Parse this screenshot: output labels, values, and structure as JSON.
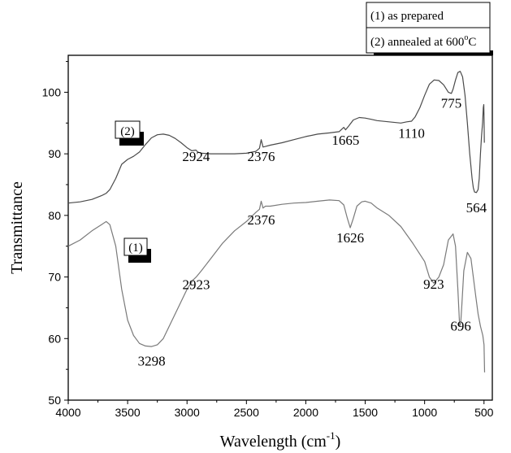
{
  "chart_data": {
    "type": "line",
    "title": "",
    "xlabel": "Wavelength (cm",
    "xlabel_sup": "-1",
    "xlabel_tail": ")",
    "ylabel": "Transmittance",
    "xlim": [
      4000,
      430
    ],
    "ylim": [
      50,
      106
    ],
    "x_ticks": [
      4000,
      3500,
      3000,
      2500,
      2000,
      1500,
      1000,
      500
    ],
    "x_tick_labels": [
      "4000",
      "3500",
      "3000",
      "2500",
      "2000",
      "1500",
      "1000",
      "500"
    ],
    "y_ticks": [
      50,
      60,
      70,
      80,
      90,
      100
    ],
    "y_tick_labels": [
      "50",
      "60",
      "70",
      "80",
      "90",
      "100"
    ],
    "grid": false,
    "legend": {
      "position": "top-right",
      "line1": "(1) as prepared",
      "line2_prefix": "(2) annealed at 600",
      "line2_sup": "o",
      "line2_suffix": "C"
    },
    "series": [
      {
        "id": "1",
        "label": "(1)",
        "color": "#7a7a7a",
        "x": [
          4000,
          3900,
          3800,
          3720,
          3680,
          3650,
          3600,
          3550,
          3500,
          3450,
          3400,
          3350,
          3298,
          3250,
          3200,
          3150,
          3100,
          3050,
          3000,
          2950,
          2923,
          2880,
          2800,
          2700,
          2600,
          2500,
          2420,
          2390,
          2376,
          2360,
          2340,
          2300,
          2200,
          2100,
          2000,
          1900,
          1800,
          1720,
          1680,
          1650,
          1626,
          1600,
          1570,
          1530,
          1500,
          1450,
          1400,
          1300,
          1200,
          1100,
          1000,
          960,
          923,
          880,
          840,
          800,
          760,
          740,
          720,
          705,
          696,
          688,
          670,
          640,
          610,
          590,
          570,
          550,
          530,
          510,
          500,
          495
        ],
        "y": [
          75,
          76,
          77.5,
          78.5,
          79,
          78.5,
          75,
          68,
          63,
          60.5,
          59.2,
          58.8,
          58.7,
          59,
          60,
          62,
          64,
          66,
          68,
          69.5,
          70,
          71,
          73,
          75.5,
          77.5,
          79,
          80.5,
          81,
          82.3,
          81.2,
          81.5,
          81.5,
          81.8,
          82,
          82.1,
          82.3,
          82.5,
          82.4,
          81.7,
          79.5,
          78,
          79.5,
          81.5,
          82.2,
          82.3,
          82,
          81.2,
          80,
          78.2,
          75.5,
          72.5,
          70,
          69,
          70,
          72,
          76,
          77,
          75,
          68,
          62,
          62.5,
          65,
          71,
          74,
          73,
          70,
          67,
          64,
          62,
          60.5,
          59,
          54.5
        ]
      },
      {
        "id": "2",
        "label": "(2)",
        "color": "#4a4a4a",
        "x": [
          4000,
          3900,
          3800,
          3720,
          3680,
          3650,
          3600,
          3550,
          3500,
          3450,
          3400,
          3350,
          3300,
          3250,
          3200,
          3150,
          3100,
          3050,
          3000,
          2960,
          2930,
          2924,
          2910,
          2880,
          2800,
          2700,
          2600,
          2500,
          2420,
          2390,
          2376,
          2360,
          2340,
          2300,
          2200,
          2100,
          2000,
          1900,
          1800,
          1720,
          1680,
          1665,
          1640,
          1600,
          1550,
          1500,
          1450,
          1400,
          1300,
          1200,
          1150,
          1110,
          1080,
          1040,
          1000,
          960,
          920,
          880,
          840,
          800,
          775,
          760,
          740,
          720,
          700,
          680,
          660,
          640,
          620,
          600,
          590,
          580,
          564,
          550,
          540,
          530,
          520,
          512,
          506,
          502,
          500,
          497
        ],
        "y": [
          82,
          82.2,
          82.6,
          83.2,
          83.6,
          84.2,
          86,
          88.3,
          89.1,
          89.6,
          90.3,
          91.5,
          92.6,
          93.1,
          93.2,
          93,
          92.5,
          91.8,
          91,
          90.5,
          90.6,
          90.6,
          90.3,
          90.1,
          90,
          90,
          90,
          90.1,
          90.4,
          90.9,
          92.3,
          91.1,
          91.2,
          91.4,
          91.8,
          92.3,
          92.8,
          93.2,
          93.4,
          93.6,
          94.3,
          93.9,
          94.5,
          95.5,
          95.9,
          95.8,
          95.6,
          95.4,
          95.2,
          95,
          95.2,
          95.3,
          96,
          97.5,
          99.5,
          101.3,
          102,
          101.9,
          101.2,
          100,
          99.8,
          100.5,
          102,
          103.2,
          103.4,
          102.5,
          99.5,
          95,
          90,
          86,
          84.5,
          83.8,
          83.7,
          84.2,
          86,
          90,
          93,
          95,
          97.5,
          98,
          96,
          91.8
        ]
      }
    ],
    "annotations": [
      {
        "text": "2924",
        "x": 2924,
        "y": 88.8,
        "series": "2"
      },
      {
        "text": "2376",
        "x": 2376,
        "y": 88.8,
        "series": "2"
      },
      {
        "text": "1665",
        "x": 1665,
        "y": 91.5,
        "series": "2"
      },
      {
        "text": "1110",
        "x": 1110,
        "y": 92.6,
        "series": "2"
      },
      {
        "text": "775",
        "x": 775,
        "y": 97.5,
        "series": "2"
      },
      {
        "text": "564",
        "x": 564,
        "y": 80.5,
        "series": "2"
      },
      {
        "text": "2376",
        "x": 2376,
        "y": 78.5,
        "series": "1"
      },
      {
        "text": "1626",
        "x": 1626,
        "y": 75.6,
        "series": "1"
      },
      {
        "text": "2923",
        "x": 2923,
        "y": 68.0,
        "series": "1"
      },
      {
        "text": "923",
        "x": 923,
        "y": 68.1,
        "series": "1"
      },
      {
        "text": "696",
        "x": 696,
        "y": 61.3,
        "series": "1"
      },
      {
        "text": "3298",
        "x": 3298,
        "y": 55.6,
        "series": "1"
      }
    ]
  }
}
